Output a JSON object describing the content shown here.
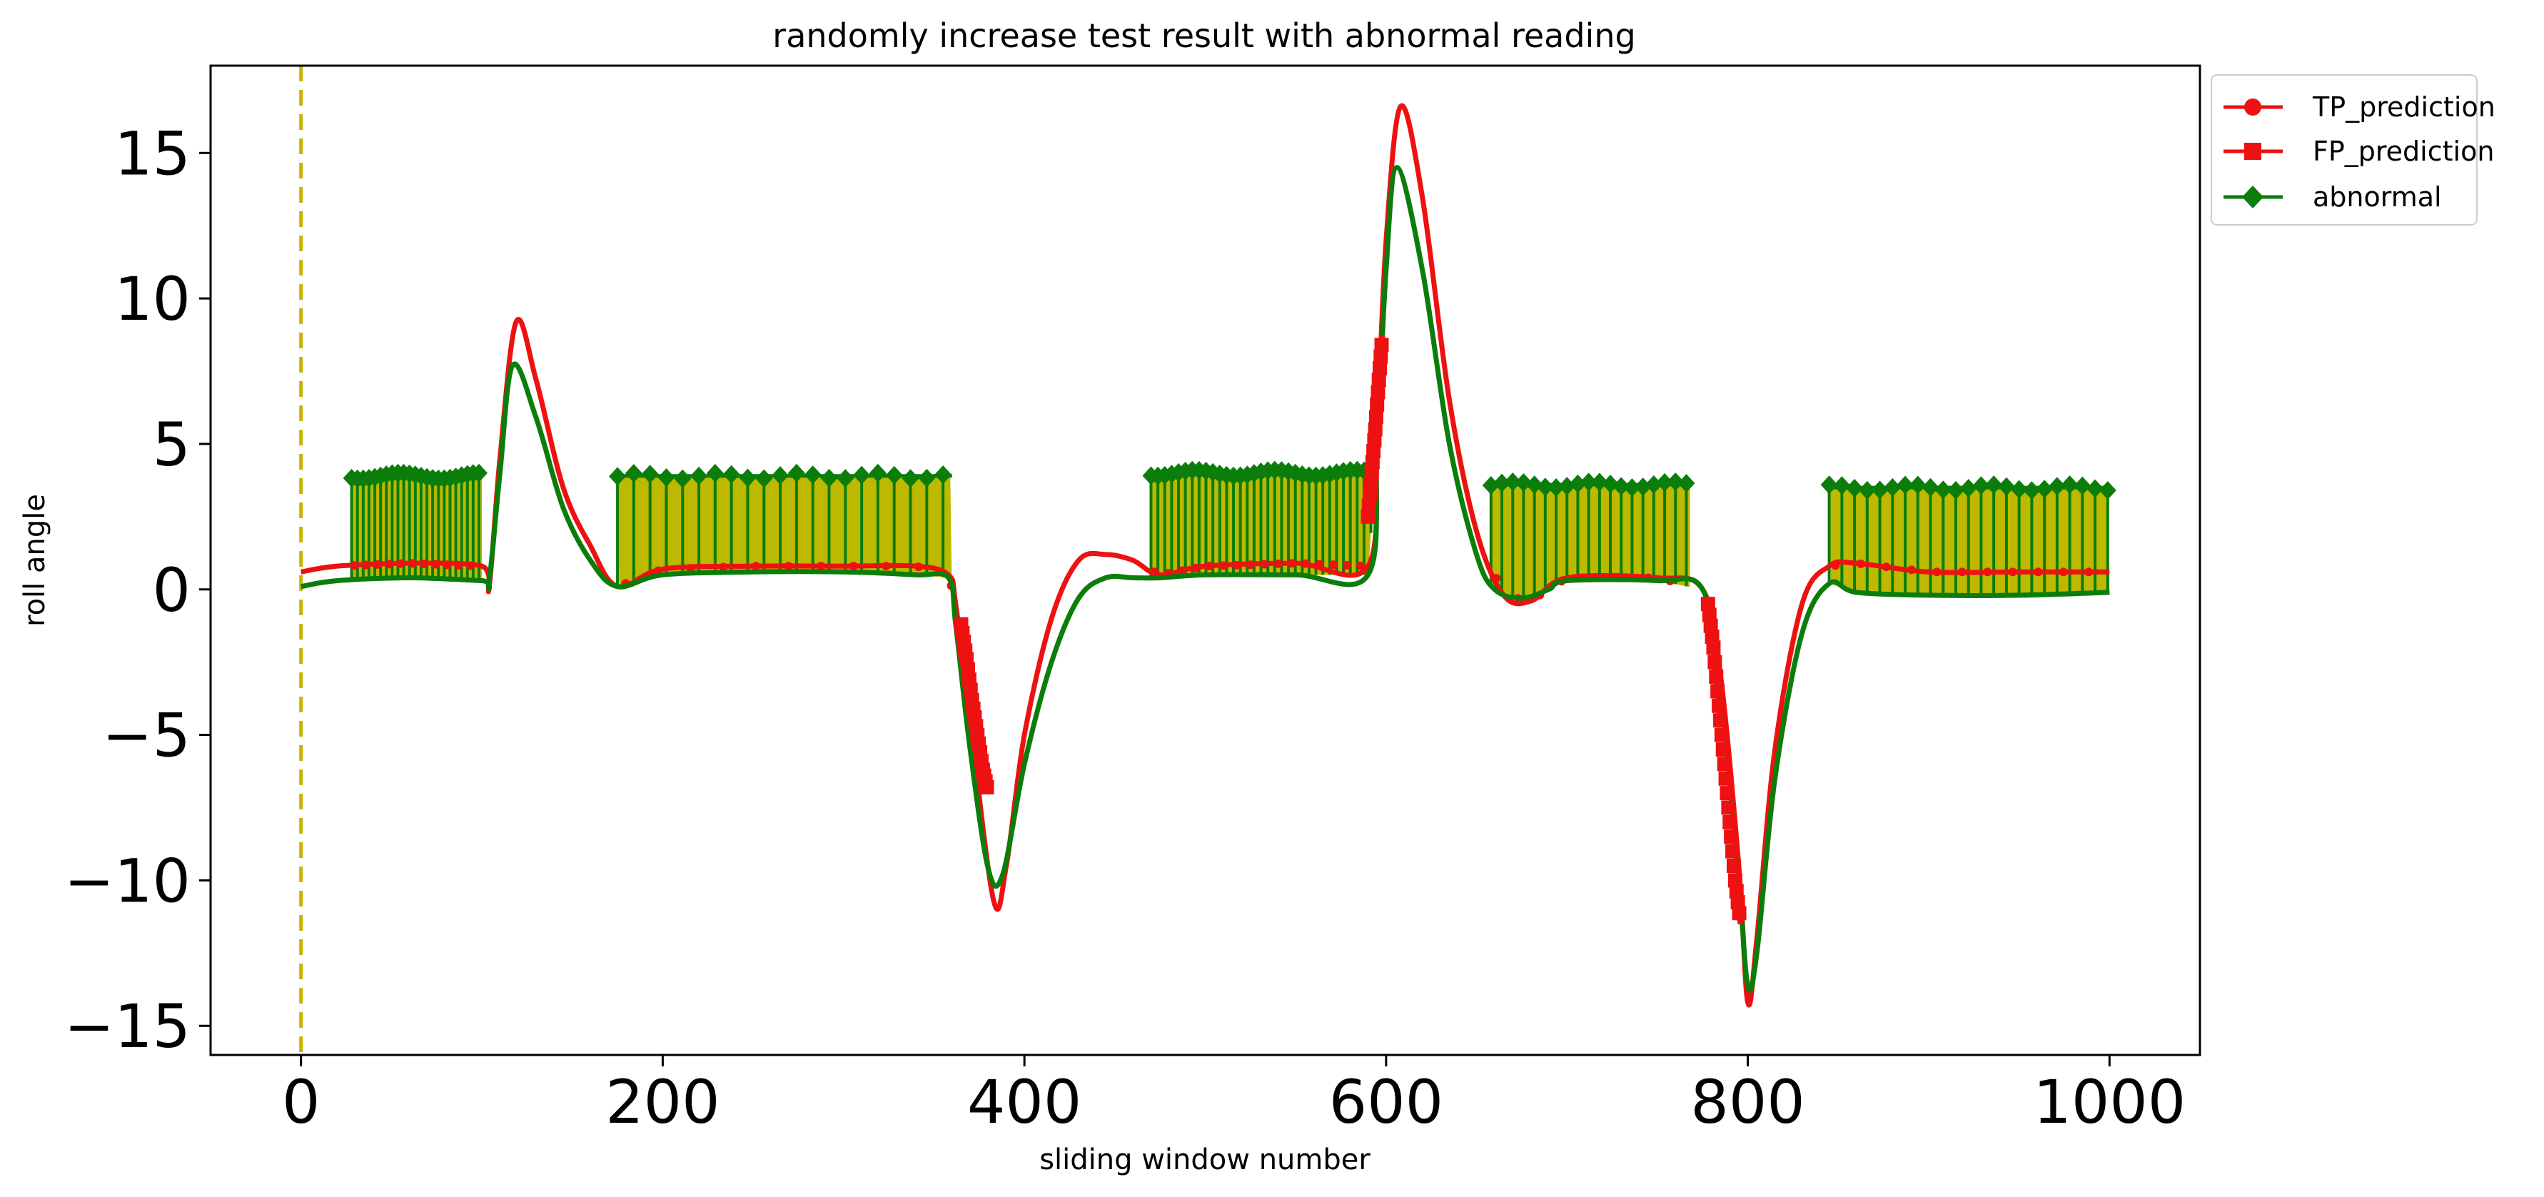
{
  "chart_data": {
    "type": "line",
    "title": "randomly increase test result with abnormal reading",
    "xlabel": "sliding window number",
    "ylabel": "roll angle",
    "xlim": [
      -50,
      1050
    ],
    "ylim": [
      -16,
      18
    ],
    "xticks": [
      0,
      200,
      400,
      600,
      800,
      1000
    ],
    "xtick_labels": [
      "0",
      "200",
      "400",
      "600",
      "800",
      "1000"
    ],
    "yticks": [
      15,
      10,
      5,
      0,
      -5,
      -10,
      -15
    ],
    "ytick_labels": [
      "15",
      "10",
      "5",
      "0",
      "−5",
      "−10",
      "−15"
    ],
    "vline": {
      "x": 0,
      "color": "#c8b400",
      "style": "dashed"
    },
    "colors": {
      "tp": "#ee1111",
      "fp": "#ee1111",
      "abnormal": "#0b7d0b",
      "fill": "#bdb800",
      "vline": "#c8b400"
    },
    "series": [
      {
        "name": "TP_prediction",
        "marker": "circle",
        "x": [
          0,
          20,
          60,
          100,
          104,
          110,
          119,
          130,
          145,
          160,
          175,
          200,
          250,
          300,
          340,
          358,
          362,
          370,
          383,
          390,
          400,
          415,
          430,
          445,
          460,
          475,
          500,
          550,
          590,
          595,
          600,
          608,
          620,
          635,
          650,
          665,
          680,
          700,
          750,
          775,
          785,
          795,
          800,
          805,
          815,
          830,
          845,
          860,
          900,
          950,
          1000
        ],
        "y": [
          0.6,
          0.8,
          0.9,
          0.8,
          0.1,
          4.5,
          9.2,
          7.2,
          3.5,
          1.5,
          0.1,
          0.7,
          0.8,
          0.8,
          0.8,
          0.5,
          -0.5,
          -4.5,
          -10.7,
          -9.5,
          -5.0,
          -1.0,
          1.0,
          1.2,
          1.0,
          0.5,
          0.8,
          0.9,
          0.8,
          5.5,
          12.0,
          16.6,
          13.5,
          6.5,
          2.0,
          -0.2,
          -0.4,
          0.4,
          0.4,
          0.0,
          -3.0,
          -9.5,
          -14.2,
          -12.0,
          -5.5,
          -0.5,
          0.8,
          0.9,
          0.6,
          0.6,
          0.6
        ]
      },
      {
        "name": "FP_prediction",
        "marker": "square",
        "segments": [
          {
            "x": [
              365,
              368,
              371,
              374,
              377,
              380
            ],
            "y": [
              -1.2,
              -2.4,
              -3.8,
              -5.0,
              -6.2,
              -7.0
            ]
          },
          {
            "x": [
              590,
              592,
              594,
              596,
              598
            ],
            "y": [
              2.5,
              4.0,
              5.5,
              7.2,
              8.8
            ]
          },
          {
            "x": [
              778,
              781,
              784,
              787,
              790,
              793,
              796
            ],
            "y": [
              -0.5,
              -2.0,
              -4.0,
              -6.0,
              -8.0,
              -10.0,
              -11.5
            ]
          }
        ]
      },
      {
        "name": "abnormal",
        "marker": "diamond",
        "x": [
          0,
          20,
          60,
          100,
          104,
          110,
          117,
          130,
          145,
          160,
          175,
          200,
          250,
          300,
          340,
          358,
          362,
          370,
          380,
          388,
          400,
          415,
          430,
          445,
          460,
          475,
          500,
          550,
          590,
          595,
          600,
          606,
          620,
          635,
          650,
          660,
          675,
          690,
          700,
          750,
          775,
          785,
          795,
          800,
          805,
          815,
          830,
          845,
          860,
          900,
          950,
          1000
        ],
        "y": [
          0.1,
          0.3,
          0.4,
          0.3,
          0.3,
          4.0,
          7.7,
          5.9,
          2.8,
          1.0,
          0.1,
          0.5,
          0.6,
          0.6,
          0.5,
          0.4,
          -1.2,
          -5.5,
          -9.6,
          -9.8,
          -6.0,
          -2.5,
          -0.3,
          0.4,
          0.4,
          0.4,
          0.5,
          0.5,
          0.5,
          5.0,
          11.0,
          14.5,
          11.0,
          5.0,
          1.2,
          0.0,
          -0.3,
          0.0,
          0.3,
          0.3,
          0.0,
          -3.5,
          -10.0,
          -13.6,
          -12.5,
          -6.5,
          -1.5,
          0.2,
          -0.1,
          -0.2,
          -0.2,
          -0.1
        ]
      }
    ],
    "abnormal_blocks": [
      {
        "x_start": 28,
        "x_end": 100,
        "top": 3.9,
        "spacing": 3.2
      },
      {
        "x_start": 175,
        "x_end": 360,
        "top": 3.9,
        "spacing": 9
      },
      {
        "x_start": 470,
        "x_end": 592,
        "top": 4.0,
        "spacing": 3.8
      },
      {
        "x_start": 658,
        "x_end": 768,
        "top": 3.6,
        "spacing": 6
      },
      {
        "x_start": 845,
        "x_end": 1000,
        "top": 3.5,
        "spacing": 7
      }
    ],
    "legend": {
      "position": "outside-top-right",
      "entries": [
        "TP_prediction",
        "FP_prediction",
        "abnormal"
      ]
    }
  }
}
